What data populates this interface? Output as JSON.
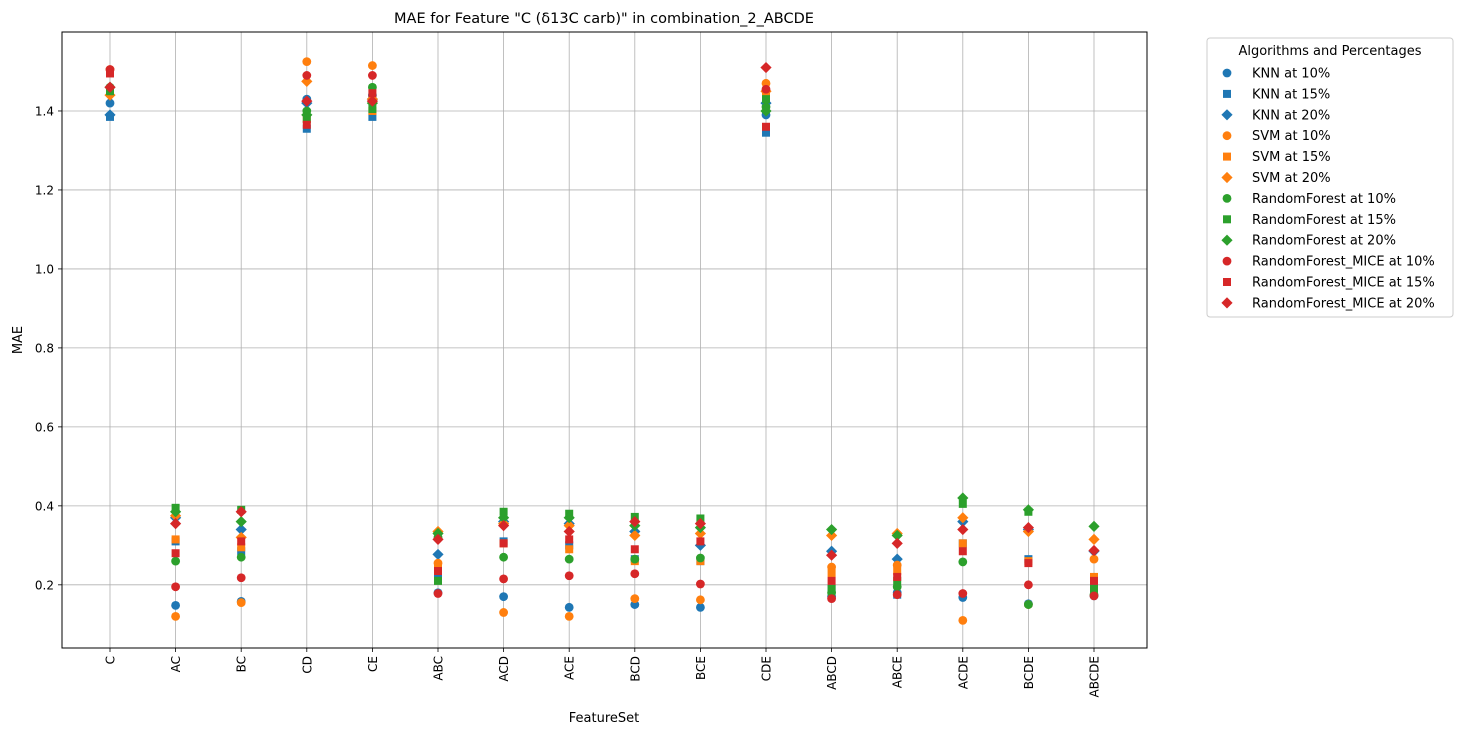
{
  "chart_data": {
    "type": "scatter",
    "title": "MAE for Feature \"C (δ13C carb)\" in combination_2_ABCDE",
    "xlabel": "FeatureSet",
    "ylabel": "MAE",
    "categories": [
      "C",
      "AC",
      "BC",
      "CD",
      "CE",
      "ABC",
      "ACD",
      "ACE",
      "BCD",
      "BCE",
      "CDE",
      "ABCD",
      "ABCE",
      "ACDE",
      "BCDE",
      "ABCDE"
    ],
    "ylim": [
      0.04,
      1.6
    ],
    "yticks": [
      "0.2",
      "0.4",
      "0.6",
      "0.8",
      "1.0",
      "1.2",
      "1.4"
    ],
    "grid": true,
    "legend": {
      "title": "Algorithms and Percentages",
      "placement": "outside-top-right"
    },
    "series": [
      {
        "name": "KNN at 10%",
        "color": "#1f77b4",
        "marker": "circle",
        "values": [
          1.42,
          0.148,
          0.158,
          1.43,
          1.44,
          0.18,
          0.17,
          0.143,
          0.15,
          0.143,
          1.39,
          0.17,
          0.18,
          0.168,
          0.152,
          0.172
        ]
      },
      {
        "name": "KNN at 15%",
        "color": "#1f77b4",
        "marker": "square",
        "values": [
          1.385,
          0.31,
          0.285,
          1.355,
          1.385,
          0.225,
          0.31,
          0.3,
          0.265,
          0.26,
          1.345,
          0.19,
          0.175,
          0.305,
          0.265,
          0.2
        ]
      },
      {
        "name": "KNN at 20%",
        "color": "#1f77b4",
        "marker": "diamond",
        "values": [
          1.39,
          0.37,
          0.34,
          1.42,
          1.43,
          0.277,
          0.36,
          0.355,
          0.335,
          0.3,
          1.42,
          0.285,
          0.265,
          0.36,
          0.34,
          0.285
        ]
      },
      {
        "name": "SVM at 10%",
        "color": "#ff7f0e",
        "marker": "circle",
        "values": [
          1.505,
          0.12,
          0.155,
          1.525,
          1.515,
          0.255,
          0.13,
          0.12,
          0.165,
          0.162,
          1.47,
          0.245,
          0.25,
          0.11,
          0.15,
          0.265
        ]
      },
      {
        "name": "SVM at 15%",
        "color": "#ff7f0e",
        "marker": "square",
        "values": [
          1.45,
          0.315,
          0.295,
          1.38,
          1.4,
          0.245,
          0.305,
          0.29,
          0.26,
          0.26,
          1.44,
          0.23,
          0.235,
          0.305,
          0.26,
          0.22
        ]
      },
      {
        "name": "SVM at 20%",
        "color": "#ff7f0e",
        "marker": "diamond",
        "values": [
          1.44,
          0.375,
          0.32,
          1.475,
          1.43,
          0.335,
          0.355,
          0.35,
          0.325,
          0.33,
          1.45,
          0.325,
          0.33,
          0.37,
          0.335,
          0.315
        ]
      },
      {
        "name": "RandomForest at 10%",
        "color": "#2ca02c",
        "marker": "circle",
        "values": [
          1.46,
          0.26,
          0.27,
          1.4,
          1.46,
          0.32,
          0.27,
          0.265,
          0.265,
          0.268,
          1.41,
          0.18,
          0.195,
          0.258,
          0.15,
          0.175
        ]
      },
      {
        "name": "RandomForest at 15%",
        "color": "#2ca02c",
        "marker": "square",
        "values": [
          1.45,
          0.395,
          0.39,
          1.38,
          1.405,
          0.21,
          0.385,
          0.38,
          0.372,
          0.368,
          1.43,
          0.19,
          0.21,
          0.405,
          0.385,
          0.19
        ]
      },
      {
        "name": "RandomForest at 20%",
        "color": "#2ca02c",
        "marker": "diamond",
        "values": [
          1.46,
          0.385,
          0.36,
          1.39,
          1.42,
          0.33,
          0.37,
          0.37,
          0.35,
          0.345,
          1.4,
          0.34,
          0.325,
          0.42,
          0.39,
          0.348
        ]
      },
      {
        "name": "RandomForest_MICE at 10%",
        "color": "#d62728",
        "marker": "circle",
        "values": [
          1.505,
          0.195,
          0.218,
          1.49,
          1.49,
          0.178,
          0.215,
          0.223,
          0.228,
          0.202,
          1.455,
          0.165,
          0.175,
          0.178,
          0.2,
          0.172
        ]
      },
      {
        "name": "RandomForest_MICE at 15%",
        "color": "#d62728",
        "marker": "square",
        "values": [
          1.495,
          0.28,
          0.31,
          1.365,
          1.445,
          0.235,
          0.305,
          0.315,
          0.29,
          0.31,
          1.36,
          0.21,
          0.22,
          0.285,
          0.255,
          0.21
        ]
      },
      {
        "name": "RandomForest_MICE at 20%",
        "color": "#d62728",
        "marker": "diamond",
        "values": [
          1.46,
          0.355,
          0.385,
          1.425,
          1.425,
          0.315,
          0.35,
          0.335,
          0.36,
          0.355,
          1.51,
          0.275,
          0.305,
          0.34,
          0.345,
          0.287
        ]
      }
    ]
  }
}
